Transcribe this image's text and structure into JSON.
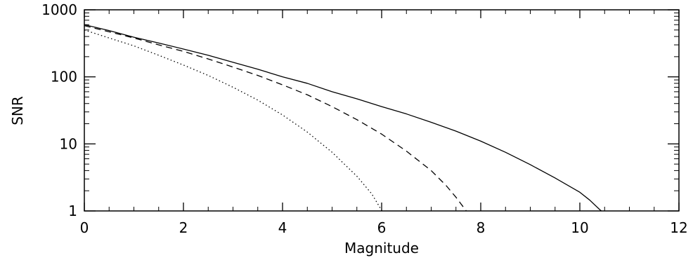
{
  "chart_data": {
    "type": "line",
    "title": "",
    "xlabel": "Magnitude",
    "ylabel": "SNR",
    "xlim": [
      0,
      12
    ],
    "ylim": [
      1,
      1000
    ],
    "y_scale": "log",
    "grid": false,
    "legend": "none",
    "x_ticks": [
      {
        "value": 0,
        "label": "0"
      },
      {
        "value": 2,
        "label": "2"
      },
      {
        "value": 4,
        "label": "4"
      },
      {
        "value": 6,
        "label": "6"
      },
      {
        "value": 8,
        "label": "8"
      },
      {
        "value": 10,
        "label": "10"
      },
      {
        "value": 12,
        "label": "12"
      }
    ],
    "y_ticks": [
      {
        "value": 1,
        "label": "1"
      },
      {
        "value": 10,
        "label": "10"
      },
      {
        "value": 100,
        "label": "100"
      },
      {
        "value": 1000,
        "label": "1000"
      }
    ],
    "series": [
      {
        "line_style": "solid",
        "color": "#000000",
        "points": [
          [
            0,
            600
          ],
          [
            0.5,
            490
          ],
          [
            1,
            390
          ],
          [
            1.5,
            320
          ],
          [
            2,
            260
          ],
          [
            2.5,
            210
          ],
          [
            3,
            165
          ],
          [
            3.5,
            130
          ],
          [
            4,
            100
          ],
          [
            4.5,
            80
          ],
          [
            5,
            60
          ],
          [
            5.5,
            47
          ],
          [
            6,
            36
          ],
          [
            6.5,
            28
          ],
          [
            7,
            21
          ],
          [
            7.5,
            15.5
          ],
          [
            8,
            11
          ],
          [
            8.5,
            7.5
          ],
          [
            9,
            4.9
          ],
          [
            9.5,
            3.1
          ],
          [
            10,
            1.9
          ],
          [
            10.2,
            1.45
          ],
          [
            10.4,
            1.05
          ],
          [
            10.45,
            0.98
          ]
        ]
      },
      {
        "line_style": "dashed",
        "color": "#000000",
        "points": [
          [
            0,
            580
          ],
          [
            0.5,
            470
          ],
          [
            1,
            380
          ],
          [
            1.5,
            300
          ],
          [
            2,
            240
          ],
          [
            2.5,
            185
          ],
          [
            3,
            140
          ],
          [
            3.5,
            105
          ],
          [
            4,
            76
          ],
          [
            4.5,
            54
          ],
          [
            5,
            36
          ],
          [
            5.5,
            23
          ],
          [
            6,
            14
          ],
          [
            6.5,
            7.8
          ],
          [
            7,
            4
          ],
          [
            7.3,
            2.4
          ],
          [
            7.5,
            1.6
          ],
          [
            7.7,
            1.02
          ],
          [
            7.72,
            0.98
          ]
        ]
      },
      {
        "line_style": "dotted",
        "color": "#000000",
        "points": [
          [
            0,
            500
          ],
          [
            0.5,
            380
          ],
          [
            1,
            290
          ],
          [
            1.5,
            210
          ],
          [
            2,
            150
          ],
          [
            2.5,
            105
          ],
          [
            3,
            70
          ],
          [
            3.5,
            45
          ],
          [
            4,
            27
          ],
          [
            4.5,
            15
          ],
          [
            5,
            7.5
          ],
          [
            5.5,
            3.3
          ],
          [
            5.8,
            1.8
          ],
          [
            6,
            1.02
          ],
          [
            6.02,
            0.98
          ]
        ]
      }
    ]
  }
}
